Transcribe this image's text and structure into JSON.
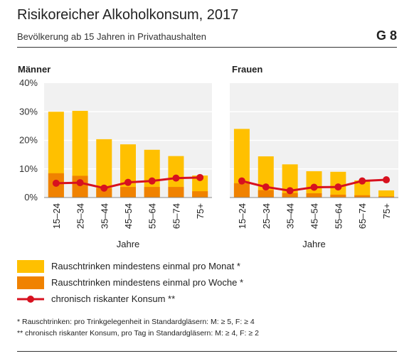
{
  "header": {
    "title": "Risikoreicher Alkoholkonsum, 2017",
    "subtitle": "Bevölkerung ab 15 Jahren in Privathaushalten",
    "figure_number": "G 8"
  },
  "colors": {
    "monthly": "#FFC000",
    "weekly": "#F08200",
    "chronic": "#D7111F",
    "panel_bg": "#F1F1F1",
    "grid": "#ffffff"
  },
  "legend": {
    "monthly": "Rauschtrinken mindestens einmal pro Monat *",
    "weekly": "Rauschtrinken mindestens einmal pro Woche *",
    "chronic": "chronisch riskanter Konsum **"
  },
  "footnotes": {
    "note1": "* Rauschtrinken: pro Trinkgelegenheit in Standardgläsern: M: ≥ 5, F: ≥ 4",
    "note2": "** chronisch riskanter Konsum, pro Tag in Standardgläsern: M: ≥ 4, F: ≥ 2"
  },
  "chart_data": {
    "type": "bar",
    "yticks": [
      "0%",
      "10%",
      "20%",
      "30%",
      "40%"
    ],
    "ylim": [
      0,
      40
    ],
    "xlabel": "Jahre",
    "categories": [
      "15–24",
      "25–34",
      "35–44",
      "45–54",
      "55–64",
      "65–74",
      "75+"
    ],
    "panels": [
      {
        "title": "Männer",
        "series": [
          {
            "name": "Rauschtrinken mindestens einmal pro Monat *",
            "values": [
              30.0,
              30.3,
              20.4,
              18.6,
              16.7,
              14.5,
              7.7
            ]
          },
          {
            "name": "Rauschtrinken mindestens einmal pro Woche *",
            "values": [
              8.5,
              7.6,
              3.3,
              3.7,
              3.7,
              3.7,
              2.2
            ]
          },
          {
            "name": "chronisch riskanter Konsum **",
            "values": [
              5.0,
              5.2,
              3.3,
              5.3,
              5.8,
              6.8,
              7.0
            ]
          }
        ]
      },
      {
        "title": "Frauen",
        "series": [
          {
            "name": "Rauschtrinken mindestens einmal pro Monat *",
            "values": [
              24.0,
              14.4,
              11.6,
              9.2,
              9.0,
              6.0,
              2.5
            ]
          },
          {
            "name": "Rauschtrinken mindestens einmal pro Woche *",
            "values": [
              5.0,
              2.6,
              1.6,
              1.5,
              1.0,
              0.8,
              0.4
            ]
          },
          {
            "name": "chronisch riskanter Konsum **",
            "values": [
              5.8,
              3.7,
              2.4,
              3.6,
              3.7,
              5.8,
              6.2
            ]
          }
        ]
      }
    ]
  }
}
